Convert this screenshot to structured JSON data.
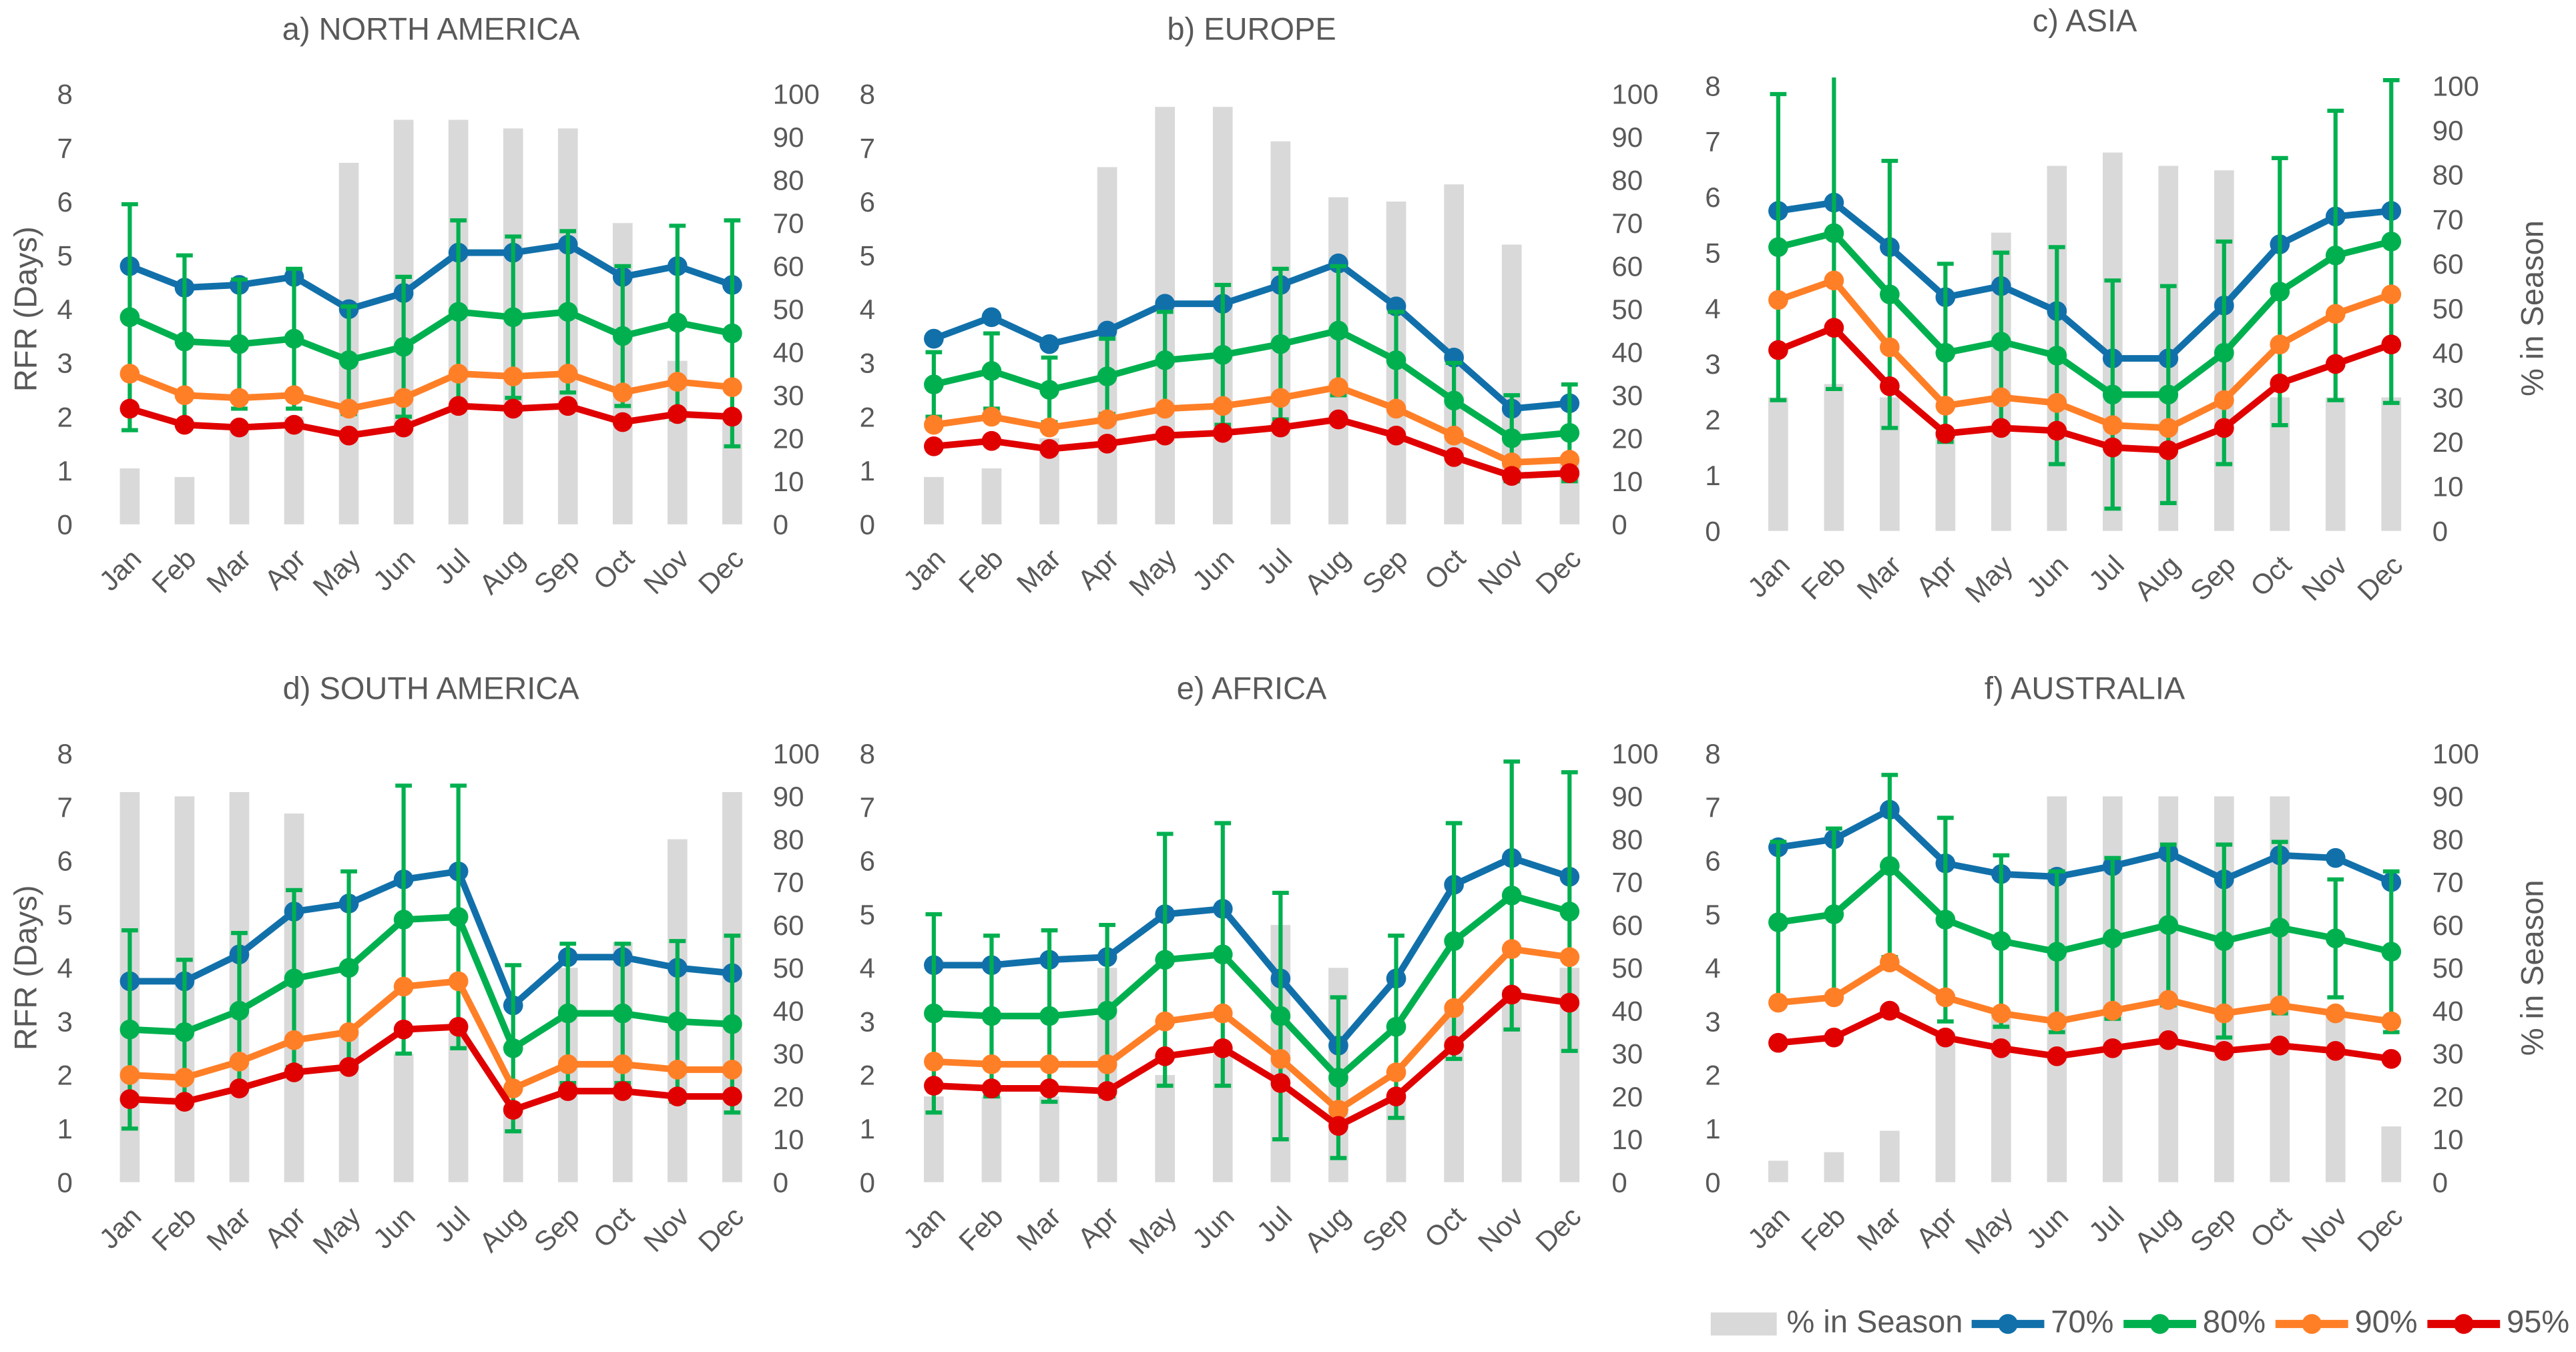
{
  "colors": {
    "bars": "#d9d9d9",
    "70%": "#1170aa",
    "80%": "#00b04f",
    "90%": "#ff7f27",
    "95%": "#e00000",
    "text": "#595959"
  },
  "legend": {
    "position": "bottom-right",
    "items": [
      "% in Season",
      "70%",
      "80%",
      "90%",
      "95%"
    ]
  },
  "chart_data": [
    {
      "type": "bar+line",
      "title": "a) NORTH AMERICA",
      "ylabel": "RFR (Days)",
      "y2label": "",
      "ylim": [
        0,
        8
      ],
      "y2lim": [
        0,
        100
      ],
      "categories": [
        "Jan",
        "Feb",
        "Mar",
        "Apr",
        "May",
        "Jun",
        "Jul",
        "Aug",
        "Sep",
        "Oct",
        "Nov",
        "Dec"
      ],
      "season_pct": [
        13,
        11,
        22,
        25,
        84,
        94,
        94,
        92,
        92,
        70,
        38,
        25
      ],
      "series": [
        {
          "name": "70%",
          "values": [
            4.8,
            4.4,
            4.45,
            4.6,
            4.0,
            4.3,
            5.05,
            5.05,
            5.2,
            4.6,
            4.8,
            4.45
          ]
        },
        {
          "name": "80%",
          "values": [
            3.85,
            3.4,
            3.35,
            3.45,
            3.05,
            3.3,
            3.95,
            3.85,
            3.95,
            3.5,
            3.75,
            3.55
          ],
          "error": [
            2.1,
            1.6,
            1.2,
            1.3,
            1.0,
            1.3,
            1.7,
            1.5,
            1.5,
            1.3,
            1.8,
            2.1
          ]
        },
        {
          "name": "90%",
          "values": [
            2.8,
            2.4,
            2.35,
            2.4,
            2.15,
            2.35,
            2.8,
            2.75,
            2.8,
            2.45,
            2.65,
            2.55
          ]
        },
        {
          "name": "95%",
          "values": [
            2.15,
            1.85,
            1.8,
            1.85,
            1.65,
            1.8,
            2.2,
            2.15,
            2.2,
            1.9,
            2.05,
            2.0
          ]
        }
      ]
    },
    {
      "type": "bar+line",
      "title": "b) EUROPE",
      "ylabel": "",
      "y2label": "",
      "ylim": [
        0,
        8
      ],
      "y2lim": [
        0,
        100
      ],
      "categories": [
        "Jan",
        "Feb",
        "Mar",
        "Apr",
        "May",
        "Jun",
        "Jul",
        "Aug",
        "Sep",
        "Oct",
        "Nov",
        "Dec"
      ],
      "season_pct": [
        11,
        13,
        20,
        83,
        97,
        97,
        89,
        76,
        75,
        79,
        65,
        15
      ],
      "series": [
        {
          "name": "70%",
          "values": [
            3.45,
            3.85,
            3.35,
            3.6,
            4.1,
            4.1,
            4.45,
            4.85,
            4.05,
            3.1,
            2.15,
            2.25
          ]
        },
        {
          "name": "80%",
          "values": [
            2.6,
            2.85,
            2.5,
            2.75,
            3.05,
            3.15,
            3.35,
            3.6,
            3.05,
            2.3,
            1.6,
            1.7
          ],
          "error": [
            0.6,
            0.7,
            0.6,
            0.7,
            0.9,
            1.3,
            1.4,
            1.2,
            0.9,
            0.7,
            0.8,
            0.9
          ]
        },
        {
          "name": "90%",
          "values": [
            1.85,
            2.0,
            1.8,
            1.95,
            2.15,
            2.2,
            2.35,
            2.55,
            2.15,
            1.65,
            1.15,
            1.2
          ]
        },
        {
          "name": "95%",
          "values": [
            1.45,
            1.55,
            1.4,
            1.5,
            1.65,
            1.7,
            1.8,
            1.95,
            1.65,
            1.25,
            0.9,
            0.95
          ]
        }
      ]
    },
    {
      "type": "bar+line",
      "title": "c) ASIA",
      "ylabel": "",
      "y2label": "% in Season",
      "ylim": [
        0,
        8
      ],
      "y2lim": [
        0,
        100
      ],
      "categories": [
        "Jan",
        "Feb",
        "Mar",
        "Apr",
        "May",
        "Jun",
        "Jul",
        "Aug",
        "Sep",
        "Oct",
        "Nov",
        "Dec"
      ],
      "season_pct": [
        30,
        33,
        30,
        22,
        67,
        82,
        85,
        82,
        81,
        30,
        30,
        30
      ],
      "series": [
        {
          "name": "70%",
          "values": [
            5.75,
            5.9,
            5.1,
            4.2,
            4.4,
            3.95,
            3.1,
            3.1,
            4.05,
            5.15,
            5.65,
            5.75
          ]
        },
        {
          "name": "80%",
          "values": [
            5.1,
            5.35,
            4.25,
            3.2,
            3.4,
            3.15,
            2.45,
            2.45,
            3.2,
            4.3,
            4.95,
            5.2
          ],
          "error": [
            2.75,
            2.8,
            2.4,
            1.6,
            1.6,
            1.95,
            2.05,
            1.95,
            2.0,
            2.4,
            2.6,
            2.9
          ]
        },
        {
          "name": "90%",
          "values": [
            4.15,
            4.5,
            3.3,
            2.25,
            2.4,
            2.3,
            1.9,
            1.85,
            2.35,
            3.35,
            3.9,
            4.25
          ]
        },
        {
          "name": "95%",
          "values": [
            3.25,
            3.65,
            2.6,
            1.75,
            1.85,
            1.8,
            1.5,
            1.45,
            1.85,
            2.65,
            3.0,
            3.35
          ]
        }
      ]
    },
    {
      "type": "bar+line",
      "title": "d) SOUTH AMERICA",
      "ylabel": "RFR (Days)",
      "y2label": "",
      "ylim": [
        0,
        8
      ],
      "y2lim": [
        0,
        100
      ],
      "categories": [
        "Jan",
        "Feb",
        "Mar",
        "Apr",
        "May",
        "Jun",
        "Jul",
        "Aug",
        "Sep",
        "Oct",
        "Nov",
        "Dec"
      ],
      "season_pct": [
        91,
        90,
        91,
        86,
        35,
        30,
        35,
        18,
        50,
        56,
        80,
        91
      ],
      "series": [
        {
          "name": "70%",
          "values": [
            3.75,
            3.75,
            4.25,
            5.05,
            5.2,
            5.65,
            5.8,
            3.3,
            4.2,
            4.2,
            4.0,
            3.9
          ]
        },
        {
          "name": "80%",
          "values": [
            2.85,
            2.8,
            3.2,
            3.8,
            4.0,
            4.9,
            4.95,
            2.5,
            3.15,
            3.15,
            3.0,
            2.95
          ],
          "error": [
            1.85,
            1.35,
            1.45,
            1.65,
            1.8,
            2.5,
            2.45,
            1.55,
            1.3,
            1.3,
            1.5,
            1.65
          ]
        },
        {
          "name": "90%",
          "values": [
            2.0,
            1.95,
            2.25,
            2.65,
            2.8,
            3.65,
            3.75,
            1.75,
            2.2,
            2.2,
            2.1,
            2.1
          ]
        },
        {
          "name": "95%",
          "values": [
            1.55,
            1.5,
            1.75,
            2.05,
            2.15,
            2.85,
            2.9,
            1.35,
            1.7,
            1.7,
            1.6,
            1.6
          ]
        }
      ]
    },
    {
      "type": "bar+line",
      "title": "e) AFRICA",
      "ylabel": "",
      "y2label": "",
      "ylim": [
        0,
        8
      ],
      "y2lim": [
        0,
        100
      ],
      "categories": [
        "Jan",
        "Feb",
        "Mar",
        "Apr",
        "May",
        "Jun",
        "Jul",
        "Aug",
        "Sep",
        "Oct",
        "Nov",
        "Dec"
      ],
      "season_pct": [
        20,
        20,
        20,
        50,
        25,
        30,
        60,
        50,
        20,
        40,
        45,
        50
      ],
      "series": [
        {
          "name": "70%",
          "values": [
            4.05,
            4.05,
            4.15,
            4.2,
            5.0,
            5.1,
            3.8,
            2.55,
            3.8,
            5.55,
            6.05,
            5.7
          ]
        },
        {
          "name": "80%",
          "values": [
            3.15,
            3.1,
            3.1,
            3.2,
            4.15,
            4.25,
            3.1,
            1.95,
            2.9,
            4.5,
            5.35,
            5.05
          ],
          "error": [
            1.85,
            1.5,
            1.6,
            1.6,
            2.35,
            2.45,
            2.3,
            1.5,
            1.7,
            2.2,
            2.5,
            2.6
          ]
        },
        {
          "name": "90%",
          "values": [
            2.25,
            2.2,
            2.2,
            2.2,
            3.0,
            3.15,
            2.3,
            1.35,
            2.05,
            3.25,
            4.35,
            4.2
          ]
        },
        {
          "name": "95%",
          "values": [
            1.8,
            1.75,
            1.75,
            1.7,
            2.35,
            2.5,
            1.85,
            1.05,
            1.6,
            2.55,
            3.5,
            3.35
          ]
        }
      ]
    },
    {
      "type": "bar+line",
      "title": "f) AUSTRALIA",
      "ylabel": "",
      "y2label": "% in Season",
      "ylim": [
        0,
        8
      ],
      "y2lim": [
        0,
        100
      ],
      "categories": [
        "Jan",
        "Feb",
        "Mar",
        "Apr",
        "May",
        "Jun",
        "Jul",
        "Aug",
        "Sep",
        "Oct",
        "Nov",
        "Dec"
      ],
      "season_pct": [
        5,
        7,
        12,
        35,
        40,
        90,
        90,
        90,
        90,
        90,
        40,
        13
      ],
      "series": [
        {
          "name": "70%",
          "values": [
            6.25,
            6.4,
            6.95,
            5.95,
            5.75,
            5.7,
            5.9,
            6.15,
            5.65,
            6.1,
            6.05,
            5.6
          ]
        },
        {
          "name": "80%",
          "values": [
            4.85,
            5.0,
            5.9,
            4.9,
            4.5,
            4.3,
            4.55,
            4.8,
            4.5,
            4.75,
            4.55,
            4.3
          ],
          "error": [
            1.5,
            1.6,
            1.7,
            1.9,
            1.6,
            1.5,
            1.5,
            1.5,
            1.8,
            1.6,
            1.1,
            1.5
          ]
        },
        {
          "name": "90%",
          "values": [
            3.35,
            3.45,
            4.1,
            3.45,
            3.15,
            3.0,
            3.2,
            3.4,
            3.15,
            3.3,
            3.15,
            3.0
          ]
        },
        {
          "name": "95%",
          "values": [
            2.6,
            2.7,
            3.2,
            2.7,
            2.5,
            2.35,
            2.5,
            2.65,
            2.45,
            2.55,
            2.45,
            2.3
          ]
        }
      ]
    }
  ]
}
